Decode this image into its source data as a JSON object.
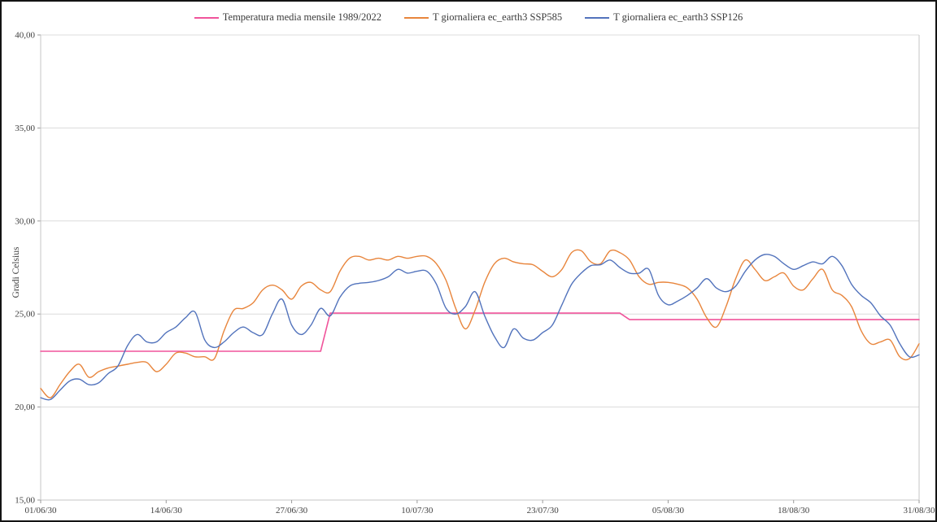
{
  "chart_data": {
    "type": "line",
    "title": "",
    "ylabel": "Gradi Celsius",
    "xlabel": "",
    "ylim": [
      15,
      40
    ],
    "y_ticks": [
      15,
      20,
      25,
      30,
      35,
      40
    ],
    "y_tick_labels": [
      "15,00",
      "20,00",
      "25,00",
      "30,00",
      "35,00",
      "40,00"
    ],
    "x_days_total": 92,
    "x_tick_days": [
      0,
      13,
      26,
      39,
      52,
      65,
      78,
      91
    ],
    "x_tick_labels": [
      "01/06/30",
      "14/06/30",
      "27/06/30",
      "10/07/30",
      "23/07/30",
      "05/08/30",
      "18/08/30",
      "31/08/30"
    ],
    "grid": "horizontal-only",
    "legend_position": "top-center",
    "colors": {
      "grid": "#dcdcdc",
      "axis": "#c6c6c6",
      "tick": "#9a9a9a",
      "text": "#3f3f3f",
      "background": "#ffffff"
    },
    "series": [
      {
        "name": "Temperatura media mensile 1989/2022",
        "color": "#F0549B",
        "smooth": false,
        "width": 1.6,
        "note": "monthly mean plotted as flat step per month",
        "segments": [
          {
            "month": "giugno",
            "days": 30,
            "value": 23.0
          },
          {
            "month": "luglio",
            "days": 31,
            "value": 25.05
          },
          {
            "month": "agosto",
            "days": 31,
            "value": 24.7
          }
        ]
      },
      {
        "name": "T giornaliera ec_earth3 SSP585",
        "color": "#E8853C",
        "smooth": true,
        "width": 1.4,
        "values": [
          21.0,
          20.5,
          21.2,
          21.9,
          22.3,
          21.6,
          21.9,
          22.1,
          22.2,
          22.3,
          22.4,
          22.4,
          21.9,
          22.3,
          22.9,
          22.9,
          22.7,
          22.7,
          22.6,
          24.1,
          25.2,
          25.3,
          25.6,
          26.3,
          26.55,
          26.3,
          25.8,
          26.5,
          26.7,
          26.3,
          26.2,
          27.3,
          28.0,
          28.1,
          27.9,
          28.0,
          27.9,
          28.1,
          28.0,
          28.1,
          28.1,
          27.7,
          26.8,
          25.3,
          24.2,
          25.2,
          26.7,
          27.7,
          28.0,
          27.8,
          27.7,
          27.65,
          27.3,
          27.0,
          27.4,
          28.3,
          28.4,
          27.8,
          27.7,
          28.4,
          28.3,
          27.9,
          27.0,
          26.6,
          26.7,
          26.7,
          26.6,
          26.4,
          25.8,
          24.8,
          24.3,
          25.4,
          26.9,
          27.9,
          27.4,
          26.8,
          27.0,
          27.2,
          26.5,
          26.3,
          26.9,
          27.4,
          26.3,
          26.0,
          25.4,
          24.1,
          23.4,
          23.5,
          23.6,
          22.7,
          22.6,
          23.4
        ]
      },
      {
        "name": "T giornaliera ec_earth3 SSP126",
        "color": "#5273BC",
        "smooth": true,
        "width": 1.4,
        "values": [
          20.5,
          20.4,
          20.9,
          21.4,
          21.5,
          21.2,
          21.3,
          21.8,
          22.2,
          23.3,
          23.9,
          23.5,
          23.5,
          24.0,
          24.3,
          24.8,
          25.1,
          23.6,
          23.2,
          23.5,
          24.0,
          24.3,
          24.0,
          23.9,
          25.0,
          25.8,
          24.4,
          23.9,
          24.4,
          25.3,
          24.9,
          25.9,
          26.5,
          26.65,
          26.7,
          26.8,
          27.0,
          27.4,
          27.2,
          27.3,
          27.3,
          26.6,
          25.3,
          25.0,
          25.4,
          26.2,
          24.9,
          23.8,
          23.2,
          24.2,
          23.7,
          23.6,
          24.0,
          24.4,
          25.5,
          26.6,
          27.2,
          27.6,
          27.65,
          27.9,
          27.5,
          27.2,
          27.2,
          27.4,
          26.0,
          25.5,
          25.7,
          26.0,
          26.4,
          26.9,
          26.4,
          26.2,
          26.5,
          27.3,
          27.9,
          28.2,
          28.1,
          27.7,
          27.4,
          27.6,
          27.8,
          27.7,
          28.1,
          27.6,
          26.6,
          26.0,
          25.6,
          24.9,
          24.4,
          23.4,
          22.7,
          22.8
        ]
      }
    ]
  }
}
